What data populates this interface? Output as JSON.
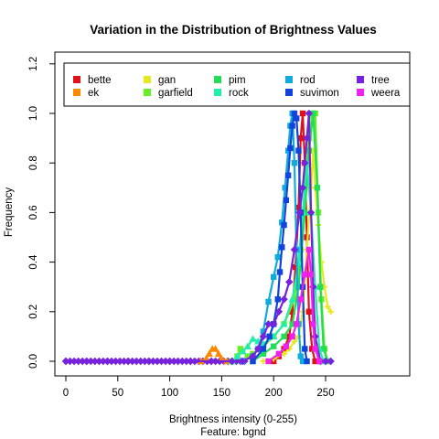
{
  "chart_data": {
    "type": "line",
    "title": "Variation in the Distribution of Brightness Values",
    "xlabel": "Brightness  intensity (0-255)",
    "xlabel2": "Feature: bgnd",
    "ylabel": "Frequency",
    "xlim": [
      0,
      255
    ],
    "ylim": [
      0,
      1.2
    ],
    "xticks": [
      0,
      50,
      100,
      150,
      200,
      250
    ],
    "yticks": [
      0.0,
      0.2,
      0.4,
      0.6,
      0.8,
      1.0,
      1.2
    ],
    "xtick_labels": [
      "0",
      "50",
      "100",
      "150",
      "200",
      "250"
    ],
    "ytick_labels": [
      "0.0",
      "0.2",
      "0.4",
      "0.6",
      "0.8",
      "1.0",
      "1.2"
    ],
    "legend_position": "top",
    "grid": false,
    "series": [
      {
        "name": "bette",
        "color": "#e0101a",
        "marker": "square",
        "points": [
          [
            200,
            0
          ],
          [
            205,
            0.02
          ],
          [
            210,
            0.05
          ],
          [
            215,
            0.1
          ],
          [
            218,
            0.2
          ],
          [
            221,
            0.38
          ],
          [
            224,
            0.62
          ],
          [
            226,
            0.9
          ],
          [
            228,
            1.0
          ],
          [
            230,
            0.8
          ],
          [
            232,
            0.5
          ],
          [
            234,
            0.2
          ],
          [
            237,
            0.05
          ],
          [
            240,
            0
          ]
        ]
      },
      {
        "name": "ek",
        "color": "#ff8800",
        "marker": "triangle",
        "points": [
          [
            130,
            0
          ],
          [
            135,
            0.01
          ],
          [
            138,
            0.03
          ],
          [
            141,
            0.05
          ],
          [
            144,
            0.05
          ],
          [
            147,
            0.03
          ],
          [
            150,
            0.01
          ],
          [
            155,
            0
          ]
        ]
      },
      {
        "name": "gan",
        "color": "#e8e820",
        "marker": "plus",
        "points": [
          [
            190,
            0
          ],
          [
            200,
            0.01
          ],
          [
            210,
            0.03
          ],
          [
            215,
            0.05
          ],
          [
            220,
            0.08
          ],
          [
            224,
            0.1
          ],
          [
            228,
            0.2
          ],
          [
            232,
            0.45
          ],
          [
            236,
            0.7
          ],
          [
            238,
            0.85
          ],
          [
            240,
            0.7
          ],
          [
            243,
            0.55
          ],
          [
            246,
            0.4
          ],
          [
            249,
            0.3
          ],
          [
            252,
            0.22
          ],
          [
            255,
            0.2
          ]
        ]
      },
      {
        "name": "garfield",
        "color": "#66ee22",
        "marker": "square",
        "points": [
          [
            160,
            0
          ],
          [
            165,
            0.02
          ],
          [
            168,
            0.05
          ],
          [
            170,
            0.04
          ],
          [
            175,
            0.02
          ],
          [
            180,
            0.03
          ],
          [
            190,
            0.06
          ],
          [
            200,
            0.1
          ],
          [
            210,
            0.15
          ],
          [
            220,
            0.25
          ],
          [
            226,
            0.45
          ],
          [
            230,
            0.7
          ],
          [
            234,
            0.9
          ],
          [
            237,
            0.99
          ],
          [
            240,
            1.0
          ],
          [
            243,
            0.6
          ],
          [
            246,
            0.25
          ],
          [
            249,
            0.05
          ],
          [
            252,
            0
          ]
        ]
      },
      {
        "name": "pim",
        "color": "#22dd55",
        "marker": "square",
        "points": [
          [
            180,
            0
          ],
          [
            190,
            0.03
          ],
          [
            200,
            0.06
          ],
          [
            210,
            0.1
          ],
          [
            218,
            0.15
          ],
          [
            224,
            0.3
          ],
          [
            230,
            0.6
          ],
          [
            234,
            0.85
          ],
          [
            238,
            1.0
          ],
          [
            242,
            0.7
          ],
          [
            245,
            0.3
          ],
          [
            248,
            0.05
          ],
          [
            252,
            0
          ]
        ]
      },
      {
        "name": "rock",
        "color": "#22eeaa",
        "marker": "triangle",
        "points": [
          [
            160,
            0
          ],
          [
            165,
            0.02
          ],
          [
            170,
            0.04
          ],
          [
            175,
            0.06
          ],
          [
            180,
            0.09
          ],
          [
            185,
            0.08
          ],
          [
            190,
            0.07
          ],
          [
            200,
            0.1
          ],
          [
            210,
            0.15
          ],
          [
            218,
            0.25
          ],
          [
            224,
            0.4
          ],
          [
            228,
            0.6
          ],
          [
            232,
            0.8
          ],
          [
            236,
            0.6
          ],
          [
            240,
            0.3
          ],
          [
            244,
            0.05
          ],
          [
            248,
            0
          ]
        ]
      },
      {
        "name": "rod",
        "color": "#11aadd",
        "marker": "square",
        "points": [
          [
            170,
            0
          ],
          [
            180,
            0.02
          ],
          [
            185,
            0.05
          ],
          [
            190,
            0.12
          ],
          [
            195,
            0.24
          ],
          [
            200,
            0.34
          ],
          [
            204,
            0.42
          ],
          [
            208,
            0.56
          ],
          [
            211,
            0.7
          ],
          [
            214,
            0.85
          ],
          [
            216,
            0.95
          ],
          [
            218,
            1.0
          ],
          [
            220,
            0.8
          ],
          [
            222,
            0.45
          ],
          [
            224,
            0.15
          ],
          [
            226,
            0.02
          ],
          [
            228,
            0
          ]
        ]
      },
      {
        "name": "suvimon",
        "color": "#1144dd",
        "marker": "square",
        "points": [
          [
            180,
            0
          ],
          [
            190,
            0.05
          ],
          [
            196,
            0.1
          ],
          [
            200,
            0.15
          ],
          [
            204,
            0.25
          ],
          [
            206,
            0.36
          ],
          [
            208,
            0.46
          ],
          [
            210,
            0.55
          ],
          [
            212,
            0.65
          ],
          [
            214,
            0.75
          ],
          [
            216,
            0.86
          ],
          [
            218,
            0.95
          ],
          [
            220,
            1.0
          ],
          [
            222,
            0.98
          ],
          [
            224,
            0.85
          ],
          [
            226,
            0.6
          ],
          [
            228,
            0.3
          ],
          [
            230,
            0.05
          ],
          [
            232,
            0
          ]
        ]
      },
      {
        "name": "tree",
        "color": "#7722dd",
        "marker": "diamond",
        "points": [
          [
            0,
            0
          ],
          [
            20,
            0
          ],
          [
            40,
            0
          ],
          [
            60,
            0
          ],
          [
            80,
            0
          ],
          [
            100,
            0
          ],
          [
            120,
            0
          ],
          [
            140,
            0
          ],
          [
            160,
            0
          ],
          [
            170,
            0
          ],
          [
            180,
            0.02
          ],
          [
            185,
            0.05
          ],
          [
            190,
            0.1
          ],
          [
            195,
            0.15
          ],
          [
            200,
            0.15
          ],
          [
            205,
            0.2
          ],
          [
            210,
            0.25
          ],
          [
            215,
            0.32
          ],
          [
            220,
            0.45
          ],
          [
            225,
            0.6
          ],
          [
            228,
            0.7
          ],
          [
            230,
            0.8
          ],
          [
            232,
            0.9
          ],
          [
            234,
            1.0
          ],
          [
            236,
            0.6
          ],
          [
            238,
            0.3
          ],
          [
            240,
            0.1
          ],
          [
            245,
            0
          ],
          [
            250,
            0
          ],
          [
            255,
            0
          ]
        ]
      },
      {
        "name": "weera",
        "color": "#ee22ee",
        "marker": "square",
        "points": [
          [
            195,
            0
          ],
          [
            205,
            0.03
          ],
          [
            212,
            0.06
          ],
          [
            218,
            0.1
          ],
          [
            222,
            0.15
          ],
          [
            226,
            0.25
          ],
          [
            230,
            0.35
          ],
          [
            234,
            0.45
          ],
          [
            236,
            0.35
          ],
          [
            238,
            0.15
          ],
          [
            240,
            0.05
          ],
          [
            244,
            0
          ]
        ]
      }
    ]
  }
}
